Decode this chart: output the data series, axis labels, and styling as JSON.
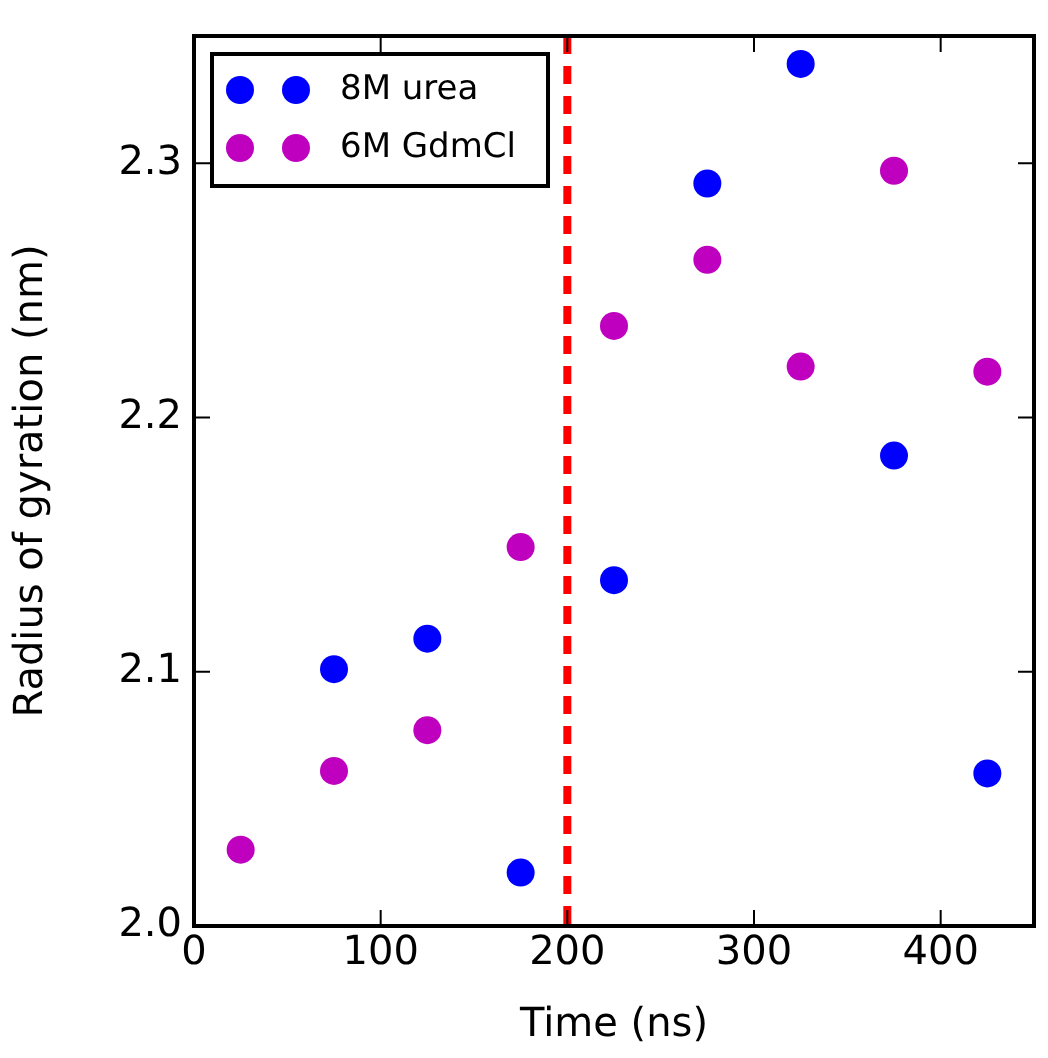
{
  "chart_data": {
    "type": "scatter",
    "xlabel": "Time (ns)",
    "ylabel": "Radius of gyration (nm)",
    "xlim": [
      0,
      450
    ],
    "xticks": [
      0,
      100,
      200,
      300,
      400
    ],
    "ylim": [
      2.0,
      2.35
    ],
    "yticks": [
      {
        "value": 2.0,
        "label": "2.0"
      },
      {
        "value": 2.1,
        "label": "2.1"
      },
      {
        "value": 2.2,
        "label": "2.2"
      },
      {
        "value": 2.3,
        "label": "2.3"
      }
    ],
    "grid": false,
    "legend": "top left",
    "marker": "circle",
    "series": [
      {
        "name": "8M urea",
        "color": "#0000ff",
        "x": [
          75,
          125,
          175,
          225,
          275,
          325,
          375,
          425
        ],
        "values": [
          2.101,
          2.113,
          2.021,
          2.136,
          2.292,
          2.339,
          2.185,
          2.06
        ]
      },
      {
        "name": "6M GdmCl",
        "color": "#bf00bf",
        "x": [
          25,
          75,
          125,
          175,
          225,
          275,
          325,
          375,
          425
        ],
        "values": [
          2.03,
          2.061,
          2.077,
          2.149,
          2.236,
          2.262,
          2.22,
          2.297,
          2.218
        ]
      }
    ],
    "ref_lines": [
      {
        "axis": "x",
        "value": 200,
        "color": "#ff0000",
        "line_style": "dashed"
      }
    ]
  }
}
